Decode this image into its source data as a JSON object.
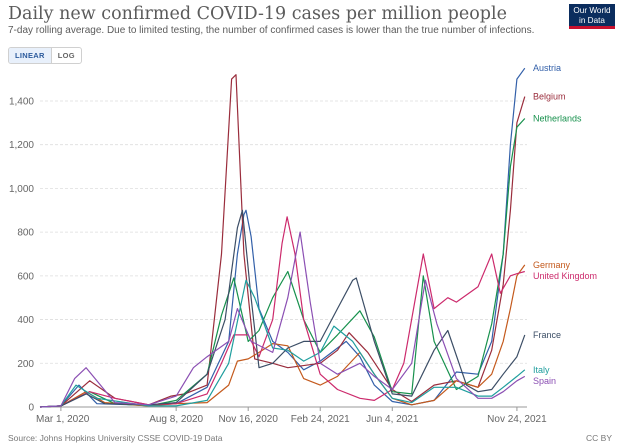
{
  "header": {
    "title": "Daily new confirmed COVID-19 cases per million people",
    "subtitle": "7-day rolling average. Due to limited testing, the number of confirmed cases is lower than the true number of infections.",
    "logo_line1": "Our World",
    "logo_line2": "in Data"
  },
  "controls": {
    "linear_label": "LINEAR",
    "log_label": "LOG",
    "active": "linear"
  },
  "footer": {
    "source": "Source: Johns Hopkins University CSSE COVID-19 Data",
    "license": "CC BY"
  },
  "colors": {
    "grid": "#dddddd",
    "axis": "#999999"
  },
  "chart_data": {
    "type": "line",
    "title": "Daily new confirmed COVID-19 cases per million people",
    "xlabel": "",
    "ylabel": "",
    "x_ticks": [
      "Mar 1, 2020",
      "Aug 8, 2020",
      "Nov 16, 2020",
      "Feb 24, 2021",
      "Jun 4, 2021",
      "Nov 24, 2021"
    ],
    "y_ticks": [
      0,
      200,
      400,
      600,
      800,
      1000,
      1200,
      1400
    ],
    "ylim": [
      0,
      1560
    ],
    "xlim": [
      "2020-02-01",
      "2021-12-08"
    ],
    "grid": true,
    "legend": "labels-at-line-ends",
    "series": [
      {
        "name": "Austria",
        "color": "#3360a9",
        "x": [
          "2020-02-01",
          "2020-03-01",
          "2020-03-26",
          "2020-04-20",
          "2020-07-01",
          "2020-08-08",
          "2020-09-20",
          "2020-10-20",
          "2020-11-01",
          "2020-11-10",
          "2020-11-13",
          "2020-11-20",
          "2020-12-01",
          "2020-12-20",
          "2021-01-10",
          "2021-02-01",
          "2021-02-24",
          "2021-03-20",
          "2021-04-01",
          "2021-04-20",
          "2021-05-10",
          "2021-06-04",
          "2021-07-01",
          "2021-08-01",
          "2021-09-01",
          "2021-10-01",
          "2021-10-20",
          "2021-11-05",
          "2021-11-15",
          "2021-11-24",
          "2021-12-05"
        ],
        "y": [
          0,
          5,
          100,
          15,
          8,
          15,
          90,
          300,
          700,
          880,
          900,
          780,
          450,
          300,
          250,
          170,
          210,
          270,
          300,
          230,
          100,
          25,
          10,
          30,
          160,
          150,
          300,
          700,
          1200,
          1500,
          1550
        ]
      },
      {
        "name": "Belgium",
        "color": "#9a2d3c",
        "x": [
          "2020-02-01",
          "2020-03-01",
          "2020-04-10",
          "2020-05-15",
          "2020-07-01",
          "2020-08-01",
          "2020-08-20",
          "2020-09-20",
          "2020-10-10",
          "2020-10-24",
          "2020-10-30",
          "2020-11-10",
          "2020-11-25",
          "2020-12-20",
          "2021-01-10",
          "2021-02-24",
          "2021-03-20",
          "2021-04-05",
          "2021-05-01",
          "2021-06-04",
          "2021-07-01",
          "2021-08-01",
          "2021-09-01",
          "2021-10-01",
          "2021-10-20",
          "2021-11-05",
          "2021-11-15",
          "2021-11-24",
          "2021-12-05"
        ],
        "y": [
          0,
          5,
          120,
          40,
          10,
          50,
          60,
          100,
          700,
          1500,
          1520,
          700,
          220,
          200,
          180,
          200,
          260,
          340,
          250,
          80,
          25,
          100,
          120,
          90,
          260,
          560,
          900,
          1300,
          1420
        ]
      },
      {
        "name": "Netherlands",
        "color": "#17914d",
        "x": [
          "2020-02-01",
          "2020-03-01",
          "2020-04-10",
          "2020-05-15",
          "2020-07-01",
          "2020-08-08",
          "2020-09-20",
          "2020-10-10",
          "2020-10-27",
          "2020-11-16",
          "2020-12-01",
          "2020-12-20",
          "2021-01-10",
          "2021-02-01",
          "2021-02-24",
          "2021-03-20",
          "2021-04-20",
          "2021-05-10",
          "2021-06-04",
          "2021-07-01",
          "2021-07-17",
          "2021-08-01",
          "2021-09-01",
          "2021-10-01",
          "2021-10-20",
          "2021-11-05",
          "2021-11-15",
          "2021-11-24",
          "2021-12-05"
        ],
        "y": [
          0,
          5,
          70,
          15,
          5,
          30,
          150,
          420,
          590,
          300,
          350,
          500,
          620,
          400,
          250,
          330,
          440,
          320,
          70,
          60,
          600,
          300,
          80,
          140,
          380,
          700,
          1100,
          1280,
          1320
        ]
      },
      {
        "name": "Germany",
        "color": "#c45a1d",
        "x": [
          "2020-02-01",
          "2020-03-01",
          "2020-04-05",
          "2020-05-01",
          "2020-07-01",
          "2020-08-08",
          "2020-09-20",
          "2020-10-20",
          "2020-11-01",
          "2020-11-16",
          "2020-12-01",
          "2020-12-20",
          "2021-01-10",
          "2021-02-01",
          "2021-02-24",
          "2021-03-20",
          "2021-04-20",
          "2021-05-10",
          "2021-06-04",
          "2021-07-01",
          "2021-08-01",
          "2021-09-01",
          "2021-10-01",
          "2021-10-20",
          "2021-11-05",
          "2021-11-15",
          "2021-11-24",
          "2021-12-05"
        ],
        "y": [
          0,
          5,
          70,
          20,
          5,
          15,
          20,
          100,
          210,
          220,
          250,
          290,
          280,
          130,
          100,
          140,
          250,
          150,
          40,
          10,
          30,
          120,
          90,
          150,
          300,
          450,
          600,
          650
        ]
      },
      {
        "name": "United Kingdom",
        "color": "#cc2a6c",
        "x": [
          "2020-02-01",
          "2020-03-01",
          "2020-04-10",
          "2020-05-15",
          "2020-07-01",
          "2020-08-08",
          "2020-09-20",
          "2020-10-10",
          "2020-10-27",
          "2020-11-16",
          "2020-12-01",
          "2020-12-20",
          "2021-01-02",
          "2021-01-09",
          "2021-01-20",
          "2021-02-01",
          "2021-02-24",
          "2021-03-20",
          "2021-04-20",
          "2021-05-10",
          "2021-06-04",
          "2021-06-20",
          "2021-07-17",
          "2021-08-01",
          "2021-08-20",
          "2021-09-01",
          "2021-10-01",
          "2021-10-20",
          "2021-11-01",
          "2021-11-15",
          "2021-11-24",
          "2021-12-05"
        ],
        "y": [
          0,
          5,
          70,
          40,
          10,
          15,
          60,
          200,
          330,
          330,
          230,
          400,
          750,
          870,
          700,
          400,
          150,
          80,
          40,
          30,
          80,
          200,
          700,
          450,
          500,
          480,
          550,
          700,
          520,
          600,
          610,
          620
        ]
      },
      {
        "name": "France",
        "color": "#3c4e66",
        "x": [
          "2020-02-01",
          "2020-03-01",
          "2020-04-05",
          "2020-05-01",
          "2020-07-01",
          "2020-08-08",
          "2020-09-20",
          "2020-10-15",
          "2020-11-01",
          "2020-11-08",
          "2020-11-20",
          "2020-12-01",
          "2020-12-20",
          "2021-01-10",
          "2021-02-01",
          "2021-02-24",
          "2021-03-20",
          "2021-04-10",
          "2021-04-15",
          "2021-05-10",
          "2021-06-04",
          "2021-07-01",
          "2021-08-01",
          "2021-08-20",
          "2021-09-15",
          "2021-10-01",
          "2021-10-20",
          "2021-11-05",
          "2021-11-24",
          "2021-12-05"
        ],
        "y": [
          0,
          5,
          60,
          15,
          10,
          20,
          150,
          400,
          820,
          900,
          500,
          180,
          200,
          270,
          300,
          300,
          450,
          580,
          590,
          300,
          60,
          50,
          260,
          350,
          100,
          70,
          80,
          150,
          230,
          330
        ]
      },
      {
        "name": "Italy",
        "color": "#1f9e9e",
        "x": [
          "2020-02-01",
          "2020-03-01",
          "2020-03-22",
          "2020-04-20",
          "2020-07-01",
          "2020-08-08",
          "2020-09-20",
          "2020-10-20",
          "2020-11-13",
          "2020-11-25",
          "2020-12-20",
          "2021-01-10",
          "2021-02-01",
          "2021-02-24",
          "2021-03-15",
          "2021-04-10",
          "2021-05-10",
          "2021-06-04",
          "2021-07-01",
          "2021-08-01",
          "2021-09-01",
          "2021-10-01",
          "2021-10-20",
          "2021-11-05",
          "2021-11-24",
          "2021-12-05"
        ],
        "y": [
          0,
          5,
          100,
          40,
          5,
          5,
          30,
          200,
          580,
          500,
          270,
          260,
          210,
          250,
          370,
          300,
          150,
          40,
          20,
          90,
          90,
          50,
          50,
          90,
          140,
          170
        ]
      },
      {
        "name": "Spain",
        "color": "#8b4fb3",
        "x": [
          "2020-02-01",
          "2020-03-01",
          "2020-03-20",
          "2020-04-05",
          "2020-05-15",
          "2020-07-01",
          "2020-08-08",
          "2020-09-01",
          "2020-09-20",
          "2020-10-20",
          "2020-11-01",
          "2020-11-20",
          "2020-12-20",
          "2021-01-10",
          "2021-01-27",
          "2021-02-10",
          "2021-02-24",
          "2021-03-20",
          "2021-04-20",
          "2021-05-10",
          "2021-06-04",
          "2021-07-01",
          "2021-07-20",
          "2021-08-05",
          "2021-09-01",
          "2021-10-01",
          "2021-10-20",
          "2021-11-05",
          "2021-11-24",
          "2021-12-05"
        ],
        "y": [
          0,
          5,
          130,
          180,
          20,
          10,
          50,
          180,
          230,
          300,
          450,
          300,
          250,
          500,
          800,
          480,
          200,
          150,
          200,
          140,
          80,
          200,
          580,
          380,
          130,
          40,
          40,
          70,
          120,
          140
        ]
      }
    ]
  }
}
